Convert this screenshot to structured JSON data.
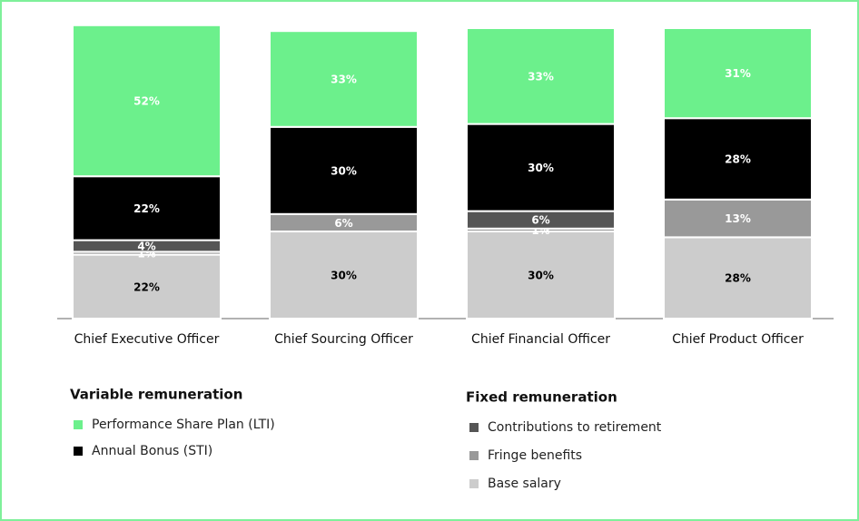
{
  "chart_data": {
    "type": "stacked_bar",
    "categories": [
      "Chief Executive Officer",
      "Chief Sourcing Officer",
      "Chief Financial Officer",
      "Chief Product Officer"
    ],
    "series": [
      {
        "name": "Base salary",
        "group": "Fixed remuneration",
        "color": "#cccccc",
        "label_color": "#000000",
        "values": [
          22,
          30,
          30,
          28
        ],
        "value_labels": [
          "22%",
          "30%",
          "30%",
          "28%"
        ]
      },
      {
        "name": "Fringe benefits",
        "group": "Fixed remuneration",
        "color": "#999999",
        "label_color": "#ffffff",
        "values": [
          1,
          6,
          1,
          13
        ],
        "value_labels": [
          "1%",
          "6%",
          "1%",
          "13%"
        ]
      },
      {
        "name": "Contributions to retirement",
        "group": "Fixed remuneration",
        "color": "#555555",
        "label_color": "#ffffff",
        "values": [
          4,
          null,
          6,
          null
        ],
        "value_labels": [
          "4%",
          null,
          "6%",
          null
        ]
      },
      {
        "name": "Annual Bonus (STI)",
        "group": "Variable remuneration",
        "color": "#000000",
        "label_color": "#ffffff",
        "values": [
          22,
          30,
          30,
          28
        ],
        "value_labels": [
          "22%",
          "30%",
          "30%",
          "28%"
        ]
      },
      {
        "name": "Performance Share Plan (LTI)",
        "group": "Variable remuneration",
        "color": "#6cf08c",
        "label_color": "#ffffff",
        "values": [
          52,
          33,
          33,
          31
        ],
        "value_labels": [
          "52%",
          "33%",
          "33%",
          "31%"
        ]
      }
    ],
    "ylim": [
      0,
      100
    ]
  }
}
